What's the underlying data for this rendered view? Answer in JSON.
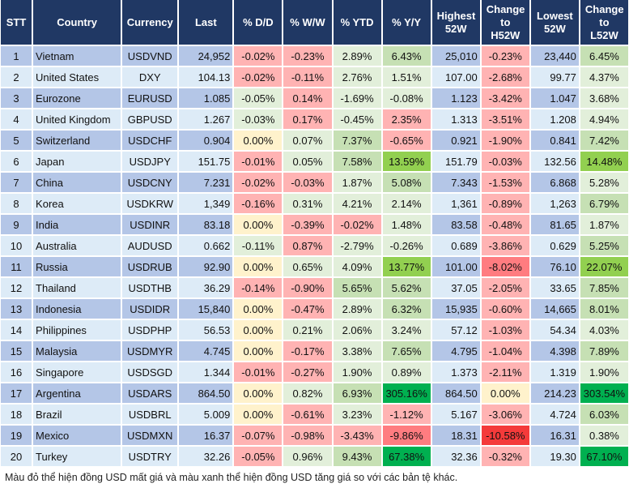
{
  "palette": {
    "r": "#ffb3b3",
    "r2": "#ff7c80",
    "r3": "#f43a3a",
    "y": "#fff2cc",
    "lg": "#e2efda",
    "mg": "#c6e0b4",
    "g": "#92d050",
    "dg": "#00b050",
    "header": "#203864"
  },
  "headers": [
    "STT",
    "Country",
    "Currency",
    "Last",
    "% D/D",
    "% W/W",
    "% YTD",
    "% Y/Y",
    "Highest 52W",
    "Change to H52W",
    "Lowest 52W",
    "Change to L52W"
  ],
  "rows": [
    {
      "stt": "1",
      "country": "Vietnam",
      "currency": "USDVND",
      "last": "24,952",
      "dd": "-0.02%",
      "ww": "-0.23%",
      "ytd": "2.89%",
      "yy": "6.43%",
      "high": "25,010",
      "chh": "-0.23%",
      "low": "23,440",
      "chl": "6.45%",
      "colors": [
        "r",
        "r",
        "lg",
        "mg",
        "r",
        "mg"
      ]
    },
    {
      "stt": "2",
      "country": "United States",
      "currency": "DXY",
      "last": "104.13",
      "dd": "-0.02%",
      "ww": "-0.11%",
      "ytd": "2.76%",
      "yy": "1.51%",
      "high": "107.00",
      "chh": "-2.68%",
      "low": "99.77",
      "chl": "4.37%",
      "colors": [
        "r",
        "r",
        "lg",
        "lg",
        "r",
        "lg"
      ]
    },
    {
      "stt": "3",
      "country": "Eurozone",
      "currency": "EURUSD",
      "last": "1.085",
      "dd": "-0.05%",
      "ww": "0.14%",
      "ytd": "-1.69%",
      "yy": "-0.08%",
      "high": "1.123",
      "chh": "-3.42%",
      "low": "1.047",
      "chl": "3.68%",
      "colors": [
        "lg",
        "r",
        "lg",
        "lg",
        "r",
        "lg"
      ]
    },
    {
      "stt": "4",
      "country": "United Kingdom",
      "currency": "GBPUSD",
      "last": "1.267",
      "dd": "-0.03%",
      "ww": "0.17%",
      "ytd": "-0.45%",
      "yy": "2.35%",
      "high": "1.313",
      "chh": "-3.51%",
      "low": "1.208",
      "chl": "4.94%",
      "colors": [
        "lg",
        "r",
        "lg",
        "r",
        "r",
        "lg"
      ]
    },
    {
      "stt": "5",
      "country": "Switzerland",
      "currency": "USDCHF",
      "last": "0.904",
      "dd": "0.00%",
      "ww": "0.07%",
      "ytd": "7.37%",
      "yy": "-0.65%",
      "high": "0.921",
      "chh": "-1.90%",
      "low": "0.841",
      "chl": "7.42%",
      "colors": [
        "y",
        "lg",
        "mg",
        "r",
        "r",
        "mg"
      ]
    },
    {
      "stt": "6",
      "country": "Japan",
      "currency": "USDJPY",
      "last": "151.75",
      "dd": "-0.01%",
      "ww": "0.05%",
      "ytd": "7.58%",
      "yy": "13.59%",
      "high": "151.79",
      "chh": "-0.03%",
      "low": "132.56",
      "chl": "14.48%",
      "colors": [
        "r",
        "lg",
        "mg",
        "g",
        "r",
        "g"
      ]
    },
    {
      "stt": "7",
      "country": "China",
      "currency": "USDCNY",
      "last": "7.231",
      "dd": "-0.02%",
      "ww": "-0.03%",
      "ytd": "1.87%",
      "yy": "5.08%",
      "high": "7.343",
      "chh": "-1.53%",
      "low": "6.868",
      "chl": "5.28%",
      "colors": [
        "r",
        "r",
        "lg",
        "mg",
        "r",
        "lg"
      ]
    },
    {
      "stt": "8",
      "country": "Korea",
      "currency": "USDKRW",
      "last": "1,349",
      "dd": "-0.16%",
      "ww": "0.31%",
      "ytd": "4.21%",
      "yy": "2.14%",
      "high": "1,361",
      "chh": "-0.89%",
      "low": "1,263",
      "chl": "6.79%",
      "colors": [
        "r",
        "lg",
        "lg",
        "lg",
        "r",
        "mg"
      ]
    },
    {
      "stt": "9",
      "country": "India",
      "currency": "USDINR",
      "last": "83.18",
      "dd": "0.00%",
      "ww": "-0.39%",
      "ytd": "-0.02%",
      "yy": "1.48%",
      "high": "83.58",
      "chh": "-0.48%",
      "low": "81.65",
      "chl": "1.87%",
      "colors": [
        "y",
        "r",
        "r",
        "lg",
        "r",
        "lg"
      ]
    },
    {
      "stt": "10",
      "country": "Australia",
      "currency": "AUDUSD",
      "last": "0.662",
      "dd": "-0.11%",
      "ww": "0.87%",
      "ytd": "-2.79%",
      "yy": "-0.26%",
      "high": "0.689",
      "chh": "-3.86%",
      "low": "0.629",
      "chl": "5.25%",
      "colors": [
        "lg",
        "r",
        "lg",
        "lg",
        "r",
        "mg"
      ]
    },
    {
      "stt": "11",
      "country": "Russia",
      "currency": "USDRUB",
      "last": "92.90",
      "dd": "0.00%",
      "ww": "0.65%",
      "ytd": "4.09%",
      "yy": "13.77%",
      "high": "101.00",
      "chh": "-8.02%",
      "low": "76.10",
      "chl": "22.07%",
      "colors": [
        "y",
        "lg",
        "lg",
        "g",
        "r2",
        "g"
      ]
    },
    {
      "stt": "12",
      "country": "Thailand",
      "currency": "USDTHB",
      "last": "36.29",
      "dd": "-0.14%",
      "ww": "-0.90%",
      "ytd": "5.65%",
      "yy": "5.62%",
      "high": "37.05",
      "chh": "-2.05%",
      "low": "33.65",
      "chl": "7.85%",
      "colors": [
        "r",
        "r",
        "mg",
        "mg",
        "r",
        "mg"
      ]
    },
    {
      "stt": "13",
      "country": "Indonesia",
      "currency": "USDIDR",
      "last": "15,840",
      "dd": "0.00%",
      "ww": "-0.47%",
      "ytd": "2.89%",
      "yy": "6.32%",
      "high": "15,935",
      "chh": "-0.60%",
      "low": "14,665",
      "chl": "8.01%",
      "colors": [
        "y",
        "r",
        "lg",
        "mg",
        "r",
        "mg"
      ]
    },
    {
      "stt": "14",
      "country": "Philippines",
      "currency": "USDPHP",
      "last": "56.53",
      "dd": "0.00%",
      "ww": "0.21%",
      "ytd": "2.06%",
      "yy": "3.24%",
      "high": "57.12",
      "chh": "-1.03%",
      "low": "54.34",
      "chl": "4.03%",
      "colors": [
        "y",
        "lg",
        "lg",
        "lg",
        "r",
        "lg"
      ]
    },
    {
      "stt": "15",
      "country": "Malaysia",
      "currency": "USDMYR",
      "last": "4.745",
      "dd": "0.00%",
      "ww": "-0.17%",
      "ytd": "3.38%",
      "yy": "7.65%",
      "high": "4.795",
      "chh": "-1.04%",
      "low": "4.398",
      "chl": "7.89%",
      "colors": [
        "y",
        "r",
        "lg",
        "mg",
        "r",
        "mg"
      ]
    },
    {
      "stt": "16",
      "country": "Singapore",
      "currency": "USDSGD",
      "last": "1.344",
      "dd": "-0.01%",
      "ww": "-0.27%",
      "ytd": "1.90%",
      "yy": "0.89%",
      "high": "1.373",
      "chh": "-2.11%",
      "low": "1.319",
      "chl": "1.90%",
      "colors": [
        "r",
        "r",
        "lg",
        "lg",
        "r",
        "lg"
      ]
    },
    {
      "stt": "17",
      "country": "Argentina",
      "currency": "USDARS",
      "last": "864.50",
      "dd": "0.00%",
      "ww": "0.82%",
      "ytd": "6.93%",
      "yy": "305.16%",
      "high": "864.50",
      "chh": "0.00%",
      "low": "214.23",
      "chl": "303.54%",
      "colors": [
        "y",
        "lg",
        "mg",
        "dg",
        "y",
        "dg"
      ]
    },
    {
      "stt": "18",
      "country": "Brazil",
      "currency": "USDBRL",
      "last": "5.009",
      "dd": "0.00%",
      "ww": "-0.61%",
      "ytd": "3.23%",
      "yy": "-1.12%",
      "high": "5.167",
      "chh": "-3.06%",
      "low": "4.724",
      "chl": "6.03%",
      "colors": [
        "y",
        "r",
        "lg",
        "r",
        "r",
        "mg"
      ]
    },
    {
      "stt": "19",
      "country": "Mexico",
      "currency": "USDMXN",
      "last": "16.37",
      "dd": "-0.07%",
      "ww": "-0.98%",
      "ytd": "-3.43%",
      "yy": "-9.86%",
      "high": "18.31",
      "chh": "-10.58%",
      "low": "16.31",
      "chl": "0.38%",
      "colors": [
        "r",
        "r",
        "r",
        "r2",
        "r3",
        "lg"
      ]
    },
    {
      "stt": "20",
      "country": "Turkey",
      "currency": "USDTRY",
      "last": "32.26",
      "dd": "-0.05%",
      "ww": "0.96%",
      "ytd": "9.43%",
      "yy": "67.38%",
      "high": "32.36",
      "chh": "-0.32%",
      "low": "19.30",
      "chl": "67.10%",
      "colors": [
        "r",
        "lg",
        "mg",
        "dg",
        "r",
        "dg"
      ]
    }
  ],
  "footnote": "Màu đỏ thể hiện đồng USD mất giá và màu xanh thể hiện đồng USD tăng giá so với các bản tệ khác."
}
